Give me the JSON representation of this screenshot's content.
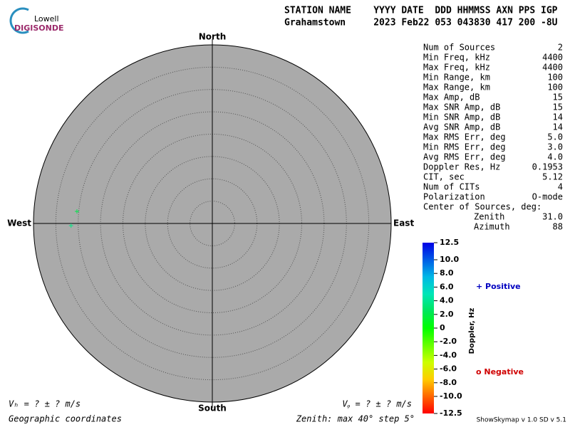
{
  "logo": {
    "top": "Lowell",
    "bottom": "DIGISONDE"
  },
  "header": {
    "line1": "STATION NAME    YYYY DATE  DDD HHMMSS AXN PPS IGP",
    "line2": "Grahamstown     2023 Feb22 053 043830 417 200 -8U"
  },
  "directions": {
    "north": "North",
    "south": "South",
    "east": "East",
    "west": "West"
  },
  "skymap": {
    "zenith_max": 40,
    "zenith_step": 5,
    "sources": [
      {
        "zenith": 30.4,
        "azimuth": 275.1,
        "doppler": 2.0
      },
      {
        "zenith": 31.6,
        "azimuth": 269.1,
        "doppler": 3.5
      }
    ]
  },
  "stats": {
    "rows": [
      [
        "Num of Sources",
        "2"
      ],
      [
        "Min Freq, kHz",
        "4400"
      ],
      [
        "Max Freq, kHz",
        "4400"
      ],
      [
        "Min Range, km",
        "100"
      ],
      [
        "Max Range, km",
        "100"
      ],
      [
        "Max Amp, dB",
        "15"
      ],
      [
        "Max SNR Amp, dB",
        "15"
      ],
      [
        "Min SNR Amp, dB",
        "14"
      ],
      [
        "Avg SNR Amp, dB",
        "14"
      ],
      [
        "Max RMS Err, deg",
        "5.0"
      ],
      [
        "Min RMS Err, deg",
        "3.0"
      ],
      [
        "Avg RMS Err, deg",
        "4.0"
      ],
      [
        "Doppler Res, Hz",
        "0.1953"
      ],
      [
        "CIT, sec",
        "5.12"
      ],
      [
        "Num of CITs",
        "4"
      ],
      [
        "Polarization",
        "O-mode"
      ],
      [
        "Center of Sources, deg:"
      ],
      [
        "Zenith",
        "31.0"
      ],
      [
        "Azimuth",
        "88"
      ]
    ]
  },
  "colorbar": {
    "label": "Doppler, Hz",
    "lim": [
      -12.5,
      12.5
    ],
    "ticks": [
      12.5,
      {
        "value": 10,
        "label": "10.0"
      },
      {
        "value": 8,
        "label": "8.0"
      },
      {
        "value": 6,
        "label": "6.0"
      },
      {
        "value": 4,
        "label": "4.0"
      },
      {
        "value": 2,
        "label": "2.0"
      },
      0,
      {
        "value": -2,
        "label": "-2.0"
      },
      {
        "value": -4,
        "label": "-4.0"
      },
      {
        "value": -6,
        "label": "-6.0"
      },
      {
        "value": -8,
        "label": "-8.0"
      },
      {
        "value": -10,
        "label": "-10.0"
      },
      -12.5
    ]
  },
  "legend": {
    "positive": "+ Positive",
    "negative": "o Negative"
  },
  "footer": {
    "vh": "Vₕ =  ? ±  ? m/s",
    "vz": "Vᵩ =  ? ±  ? m/s",
    "coords": "Geographic coordinates",
    "zenith": "Zenith: max 40°  step 5°",
    "version": "ShowSkymap v 1.0   SD v 5.1"
  }
}
